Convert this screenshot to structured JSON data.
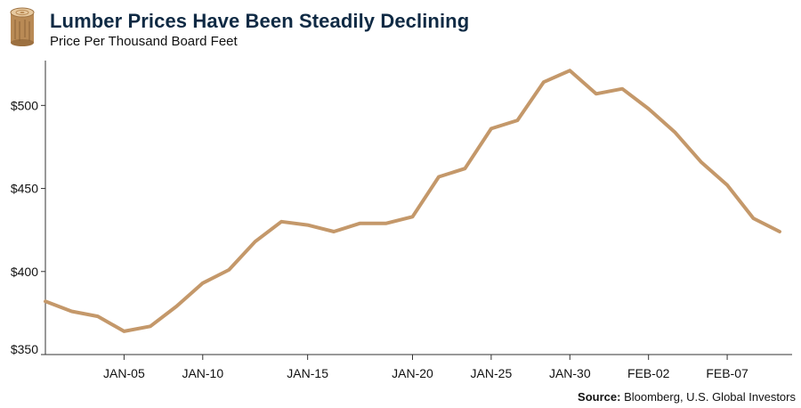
{
  "header": {
    "title": "Lumber Prices Have Been Steadily Declining",
    "subtitle": "Price Per Thousand Board Feet",
    "logo_icon": "wood-log-icon"
  },
  "source": {
    "label": "Source:",
    "text": "Bloomberg, U.S. Global Investors"
  },
  "colors": {
    "line": "#c4986a",
    "title": "#0f2a44",
    "axis": "#333333"
  },
  "chart_data": {
    "type": "line",
    "title": "Lumber Prices Have Been Steadily Declining",
    "subtitle": "Price Per Thousand Board Feet",
    "xlabel": "",
    "ylabel": "",
    "ylim": [
      350,
      527
    ],
    "yticks": [
      350,
      400,
      450,
      500
    ],
    "ytick_labels": [
      "$350",
      "$400",
      "$450",
      "$500"
    ],
    "x_tick_labels": [
      {
        "index": 3,
        "label": "JAN-05"
      },
      {
        "index": 6,
        "label": "JAN-10"
      },
      {
        "index": 10,
        "label": "JAN-15"
      },
      {
        "index": 14,
        "label": "JAN-20"
      },
      {
        "index": 17,
        "label": "JAN-25"
      },
      {
        "index": 20,
        "label": "JAN-30"
      },
      {
        "index": 23,
        "label": "FEB-02"
      },
      {
        "index": 26,
        "label": "FEB-07"
      }
    ],
    "grid": false,
    "series": [
      {
        "values": [
          382,
          376,
          373,
          364,
          367,
          379,
          393,
          401,
          418,
          430,
          428,
          424,
          429,
          429,
          433,
          457,
          462,
          486,
          491,
          514,
          521,
          507,
          510,
          498,
          484,
          466,
          452,
          432,
          424
        ]
      }
    ]
  }
}
